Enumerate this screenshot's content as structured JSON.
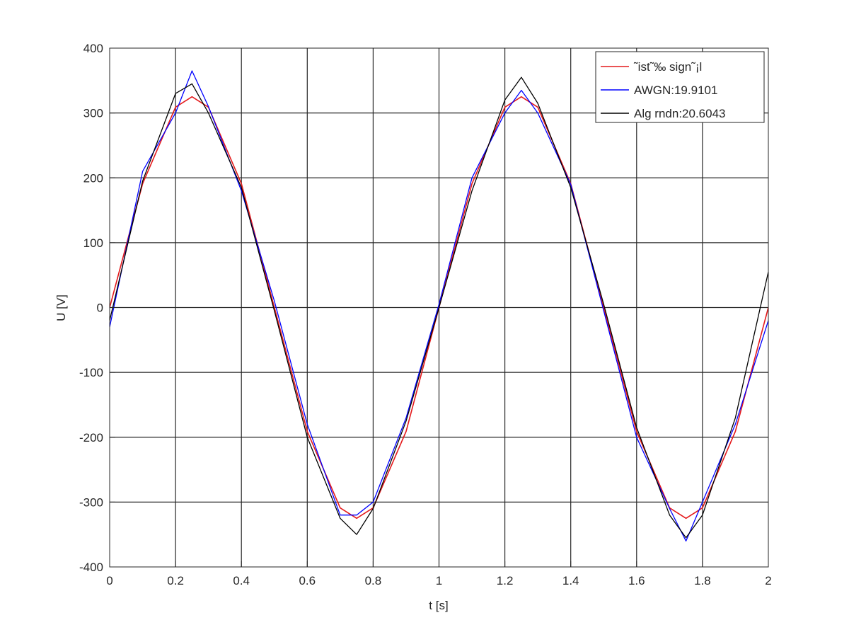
{
  "chart_data": {
    "type": "line",
    "title": "",
    "xlabel": "t [s]",
    "ylabel": "U [V]",
    "xlim": [
      0,
      2
    ],
    "ylim": [
      -400,
      400
    ],
    "grid": true,
    "legend_position": "top-right",
    "x_ticks": [
      0,
      0.2,
      0.4,
      0.6,
      0.8,
      1,
      1.2,
      1.4,
      1.6,
      1.8,
      2
    ],
    "x_tick_labels": [
      "0",
      "0.2",
      "0.4",
      "0.6",
      "0.8",
      "1",
      "1.2",
      "1.4",
      "1.6",
      "1.8",
      "2"
    ],
    "y_ticks": [
      -400,
      -300,
      -200,
      -100,
      0,
      100,
      200,
      300,
      400
    ],
    "y_tick_labels": [
      "-400",
      "-300",
      "-200",
      "-100",
      "0",
      "100",
      "200",
      "300",
      "400"
    ],
    "x": [
      0,
      0.1,
      0.2,
      0.25,
      0.3,
      0.4,
      0.5,
      0.6,
      0.7,
      0.75,
      0.8,
      0.9,
      1.0,
      1.1,
      1.2,
      1.25,
      1.3,
      1.4,
      1.5,
      1.6,
      1.7,
      1.75,
      1.8,
      1.9,
      2.0
    ],
    "series": [
      {
        "name": "˜ist˜‰ sign˜¡l",
        "color": "#e41a1c",
        "values": [
          0,
          191,
          309,
          325,
          309,
          191,
          0,
          -191,
          -309,
          -325,
          -309,
          -191,
          0,
          191,
          309,
          325,
          309,
          191,
          0,
          -191,
          -309,
          -325,
          -309,
          -191,
          0
        ]
      },
      {
        "name": "AWGN:19.9101",
        "color": "#0000ff",
        "values": [
          -30,
          210,
          300,
          365,
          310,
          180,
          10,
          -180,
          -320,
          -320,
          -300,
          -170,
          5,
          200,
          300,
          335,
          300,
          190,
          -5,
          -200,
          -310,
          -360,
          -300,
          -180,
          -20
        ]
      },
      {
        "name": "Alg rndn:20.6043",
        "color": "#000000",
        "values": [
          -20,
          195,
          330,
          345,
          300,
          185,
          -5,
          -200,
          -325,
          -350,
          -310,
          -175,
          0,
          180,
          320,
          355,
          315,
          185,
          5,
          -185,
          -320,
          -355,
          -320,
          -170,
          55
        ]
      }
    ]
  }
}
